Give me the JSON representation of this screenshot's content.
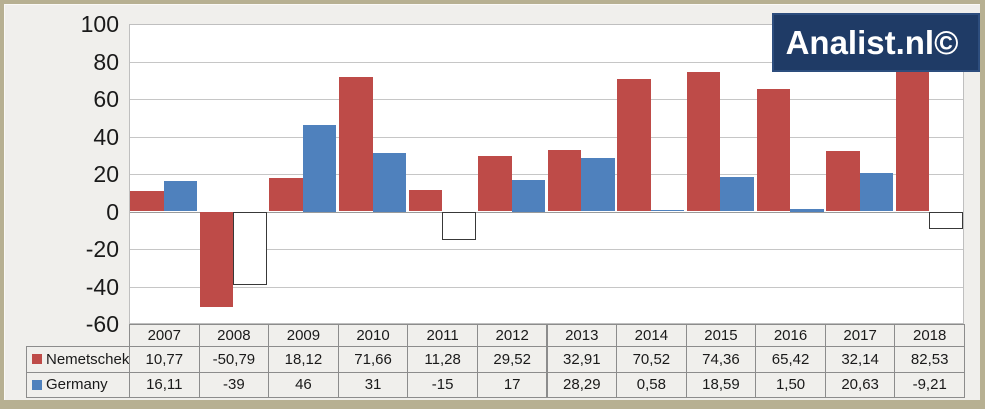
{
  "logo": {
    "text": "Analist.nl©",
    "background": "#1f3b66",
    "text_color": "#ffffff"
  },
  "chart_data": {
    "type": "bar",
    "categories": [
      "2007",
      "2008",
      "2009",
      "2010",
      "2011",
      "2012",
      "2013",
      "2014",
      "2015",
      "2016",
      "2017",
      "2018"
    ],
    "series": [
      {
        "name": "Nemetschek",
        "color": "#be4b48",
        "values": [
          10.77,
          -50.79,
          18.12,
          71.66,
          11.28,
          29.52,
          32.91,
          70.52,
          74.36,
          65.42,
          32.14,
          82.53
        ],
        "display": [
          "10,77",
          "-50,79",
          "18,12",
          "71,66",
          "11,28",
          "29,52",
          "32,91",
          "70,52",
          "74,36",
          "65,42",
          "32,14",
          "82,53"
        ]
      },
      {
        "name": "Germany",
        "color": "#4f81bd",
        "values": [
          16.11,
          -39,
          46,
          31,
          -15,
          17,
          28.29,
          0.58,
          18.59,
          1.5,
          20.63,
          -9.21
        ],
        "display": [
          "16,11",
          "-39",
          "46",
          "31",
          "-15",
          "17",
          "28,29",
          "0,58",
          "18,59",
          "1,50",
          "20,63",
          "-9,21"
        ]
      }
    ],
    "ylim": [
      -60,
      100
    ],
    "ytick_interval": 20,
    "ytick_labels": [
      "100",
      "80",
      "60",
      "40",
      "20",
      "0",
      "-20",
      "-40",
      "-60"
    ],
    "grid": true,
    "negative_style": "white-box-outline",
    "legend_position": "table-left"
  }
}
